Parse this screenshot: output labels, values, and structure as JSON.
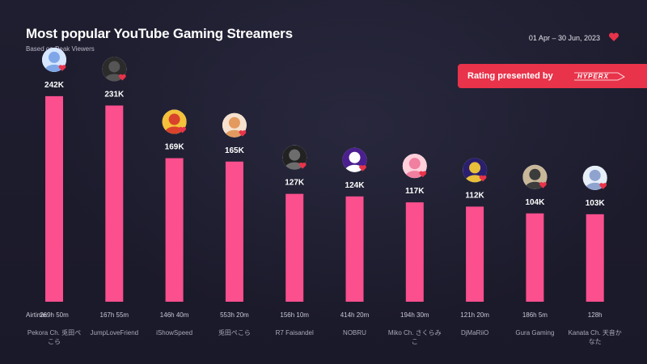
{
  "header": {
    "title": "Most popular YouTube Gaming Streamers",
    "subtitle": "Based on Peak Viewers",
    "date_range": "01 Apr – 30 Jun, 2023"
  },
  "banner": {
    "text": "Rating presented by",
    "brand": "HYPERX"
  },
  "colors": {
    "background": "#1b1a2b",
    "bar": "#fb4f8e",
    "accent": "#e8334a"
  },
  "chart_data": {
    "type": "bar",
    "title": "Most popular YouTube Gaming Streamers",
    "subtitle": "Based on Peak Viewers",
    "airtime_prefix": "Airtime:",
    "categories": [
      [
        "Pekora Ch. 兎田ぺ",
        "こら"
      ],
      [
        "JumpLoveFriend"
      ],
      [
        "iShowSpeed"
      ],
      [
        "兎田ぺこら"
      ],
      [
        "R7 Faisandel"
      ],
      [
        "NOBRU"
      ],
      [
        "Miko Ch. さくらみ",
        "こ"
      ],
      [
        "DjMaRiiO"
      ],
      [
        "Gura Gaming"
      ],
      [
        "Kanata Ch. 天音か",
        "なた"
      ]
    ],
    "values": [
      242000,
      231000,
      169000,
      165000,
      127000,
      124000,
      117000,
      112000,
      104000,
      103000
    ],
    "value_labels": [
      "242K",
      "231K",
      "169K",
      "165K",
      "127K",
      "124K",
      "117K",
      "112K",
      "104K",
      "103K"
    ],
    "airtime": [
      "269h 50m",
      "167h 55m",
      "146h 40m",
      "553h 20m",
      "156h 10m",
      "414h 20m",
      "194h 30m",
      "121h 20m",
      "186h 5m",
      "128h"
    ],
    "avatar_icons": [
      "anime-girl-avatar-icon",
      "man-avatar-icon",
      "cartoon-avatar-icon",
      "anime-girl-avatar-icon",
      "person-avatar-icon",
      "n-logo-avatar-icon",
      "anime-girl-avatar-icon",
      "logo-avatar-icon",
      "man-avatar-icon",
      "anime-girl-avatar-icon"
    ],
    "ylim": [
      0,
      260000
    ],
    "grid": false,
    "legend": "none"
  }
}
